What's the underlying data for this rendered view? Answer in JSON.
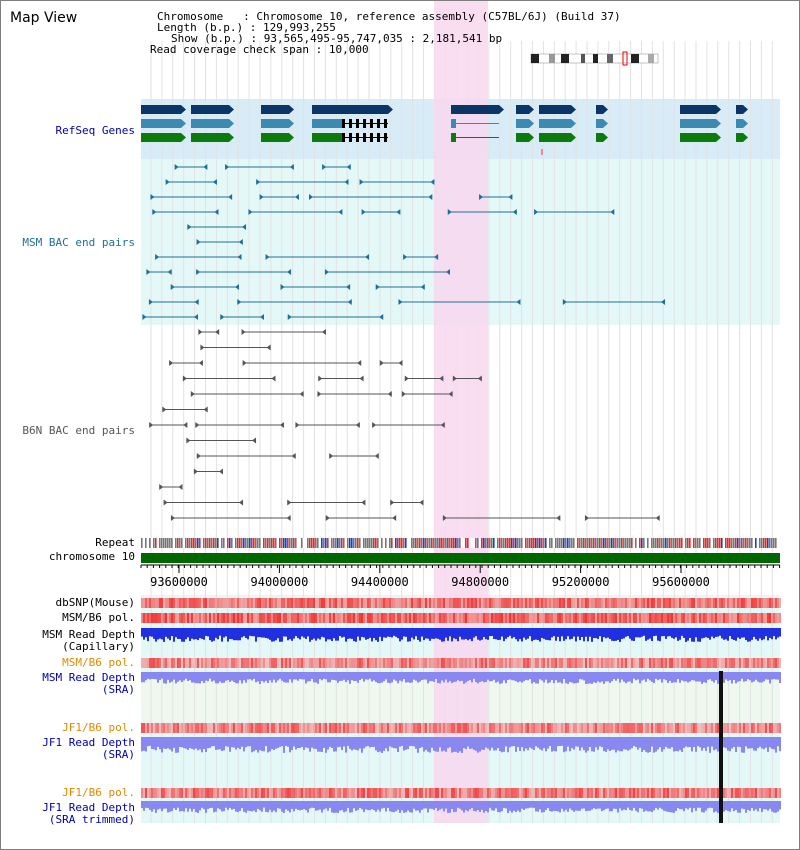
{
  "view_title": "Map View",
  "info": {
    "chromosome_key": "Chromosome",
    "chromosome_value": "Chromosome 10, reference assembly (C57BL/6J) (Build 37)",
    "length_key": "Length (b.p.)",
    "length_value": "129,993,255",
    "show_key": "Show (b.p.)",
    "show_value": "93,565,495-95,747,035 : 2,181,541 bp",
    "span_key": "Read coverage check span",
    "span_value": "10,000"
  },
  "tracks": {
    "refseq": "RefSeq Genes",
    "msm_bac": "MSM BAC end pairs",
    "b6n_bac": "B6N BAC end pairs",
    "repeat": "Repeat",
    "chrom": "chromosome 10",
    "dbsnp": "dbSNP(Mouse)",
    "msm_b6_pol": "MSM/B6 pol.",
    "msm_depth_cap_1": "MSM Read Depth",
    "msm_depth_cap_2": "(Capillary)",
    "msm_b6_pol_sra": "MSM/B6 pol.",
    "msm_depth_sra_1": "MSM Read Depth",
    "msm_depth_sra_2": "(SRA)",
    "jf1_b6_pol": "JF1/B6 pol.",
    "jf1_depth_sra_1": "JF1 Read Depth",
    "jf1_depth_sra_2": "(SRA)",
    "jf1_b6_pol_trim": "JF1/B6 pol.",
    "jf1_depth_trim_1": "JF1 Read Depth",
    "jf1_depth_trim_2": "(SRA trimmed)"
  },
  "axis_ticks": [
    "93600000",
    "94000000",
    "94400000",
    "94800000",
    "95200000",
    "95600000"
  ],
  "colors": {
    "refseq_bg": "#d8ecf8",
    "msm_bg": "#e4f8f8",
    "highlight": "#f8d8f0",
    "chromosome": "#006600",
    "navy": "#0b3566",
    "teal": "#3d8ab0",
    "green": "#0d7a0d",
    "pair_line": "#1f6f96",
    "b6n_line": "#555555",
    "label_blue": "#0000aa",
    "label_orange": "#e08a00",
    "depth_blue": "#2030e0",
    "depth_light": "#8888f0"
  }
}
